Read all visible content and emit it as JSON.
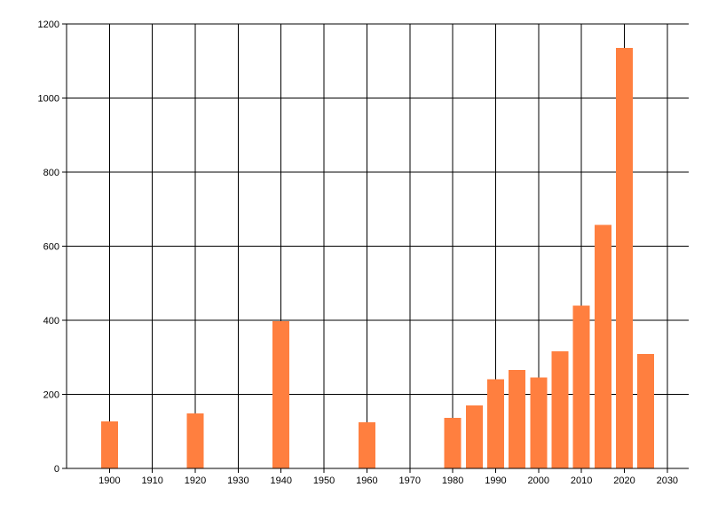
{
  "chart_data": {
    "type": "bar",
    "title": "",
    "xlabel": "",
    "ylabel": "",
    "x_ticks": [
      "1900",
      "1910",
      "1920",
      "1930",
      "1940",
      "1950",
      "1960",
      "1970",
      "1980",
      "1990",
      "2000",
      "2010",
      "2020",
      "2030"
    ],
    "y_ticks": [
      "0",
      "200",
      "400",
      "600",
      "800",
      "1000",
      "1200"
    ],
    "xlim": [
      1890,
      2035
    ],
    "ylim": [
      0,
      1200
    ],
    "grid": true,
    "bar_color": "#ff7f3f",
    "grid_color": "#000000",
    "bars": [
      {
        "x": 1900,
        "y": 127
      },
      {
        "x": 1920,
        "y": 148
      },
      {
        "x": 1940,
        "y": 398
      },
      {
        "x": 1960,
        "y": 124
      },
      {
        "x": 1980,
        "y": 136
      },
      {
        "x": 1985,
        "y": 170
      },
      {
        "x": 1990,
        "y": 241
      },
      {
        "x": 1995,
        "y": 266
      },
      {
        "x": 2000,
        "y": 246
      },
      {
        "x": 2005,
        "y": 316
      },
      {
        "x": 2010,
        "y": 440
      },
      {
        "x": 2015,
        "y": 658
      },
      {
        "x": 2020,
        "y": 1135
      },
      {
        "x": 2025,
        "y": 309
      }
    ]
  }
}
